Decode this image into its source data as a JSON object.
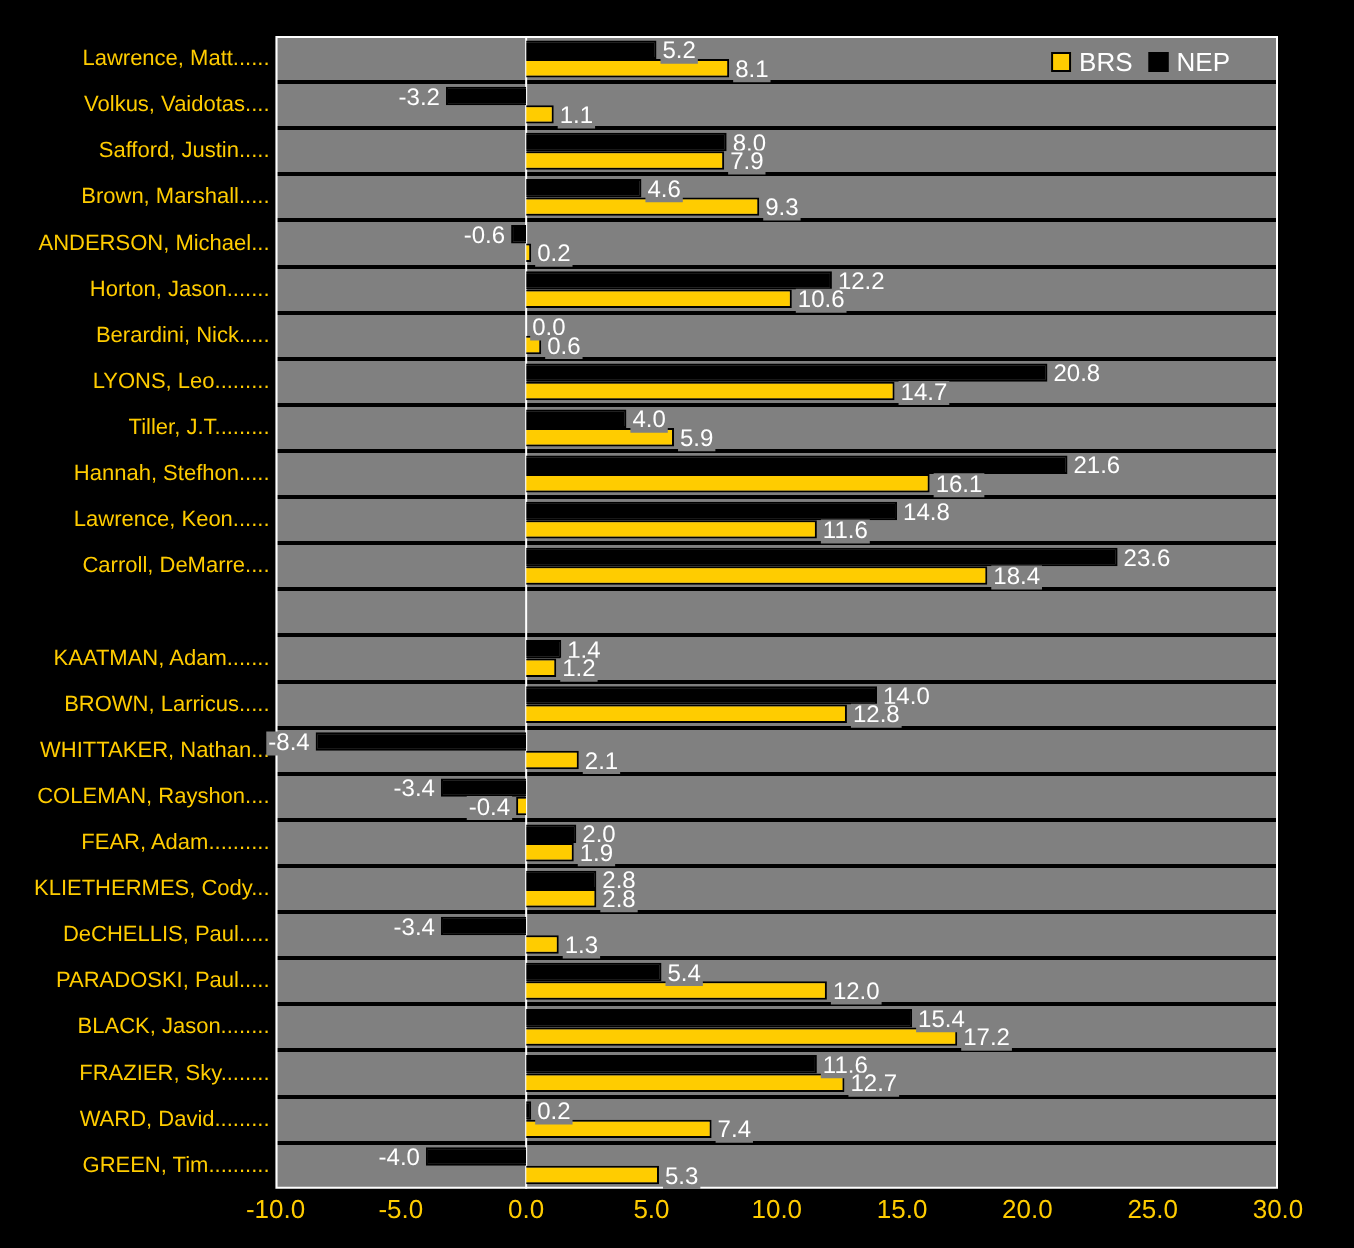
{
  "chart_data": {
    "type": "bar",
    "orientation": "horizontal",
    "categories": [
      "Lawrence, Matt......",
      "Volkus, Vaidotas....",
      "Safford, Justin.....",
      "Brown, Marshall.....",
      "ANDERSON, Michael...",
      "Horton, Jason.......",
      "Berardini, Nick.....",
      "LYONS, Leo.........",
      "Tiller, J.T.........",
      "Hannah, Stefhon.....",
      "Lawrence, Keon......",
      "Carroll, DeMarre....",
      null,
      "KAATMAN, Adam.......",
      "BROWN, Larricus.....",
      "WHITTAKER, Nathan...",
      "COLEMAN, Rayshon....",
      "FEAR, Adam..........",
      "KLIETHERMES, Cody...",
      "DeCHELLIS, Paul.....",
      "PARADOSKI, Paul.....",
      "BLACK, Jason........",
      "FRAZIER, Sky........",
      "WARD, David.........",
      "GREEN, Tim.........."
    ],
    "series": [
      {
        "name": "NEP",
        "color": "#000000",
        "values": [
          5.2,
          -3.2,
          8.0,
          4.6,
          -0.6,
          12.2,
          0.0,
          20.8,
          4.0,
          21.6,
          14.8,
          23.6,
          null,
          1.4,
          14.0,
          -8.4,
          -3.4,
          2.0,
          2.8,
          -3.4,
          5.4,
          15.4,
          11.6,
          0.2,
          -4.0
        ],
        "value_labels": [
          "5.2",
          "-3.2",
          "8.0",
          "4.6",
          "-0.6",
          "12.2",
          "0.0",
          "20.8",
          "4.0",
          "21.6",
          "14.8",
          "23.6",
          null,
          "1.4",
          "14.0",
          "-8.4",
          "-3.4",
          "2.0",
          "2.8",
          "-3.4",
          "5.4",
          "15.4",
          "11.6",
          "0.2",
          "-4.0"
        ]
      },
      {
        "name": "BRS",
        "color": "#ffcc00",
        "values": [
          8.1,
          1.1,
          7.9,
          9.3,
          0.2,
          10.6,
          0.6,
          14.7,
          5.9,
          16.1,
          11.6,
          18.4,
          null,
          1.2,
          12.8,
          2.1,
          -0.4,
          1.9,
          2.8,
          1.3,
          12.0,
          17.2,
          12.7,
          7.4,
          5.3
        ],
        "value_labels": [
          "8.1",
          "1.1",
          "7.9",
          "9.3",
          "0.2",
          "10.6",
          "0.6",
          "14.7",
          "5.9",
          "16.1",
          "11.6",
          "18.4",
          null,
          "1.2",
          "12.8",
          "2.1",
          "-0.4",
          "1.9",
          "2.8",
          "1.3",
          "12.0",
          "17.2",
          "12.7",
          "7.4",
          "5.3"
        ]
      }
    ],
    "xlim": [
      -10,
      30
    ],
    "xticks": [
      {
        "value": -10,
        "label": "-10.0"
      },
      {
        "value": -5,
        "label": "-5.0"
      },
      {
        "value": 0,
        "label": "0.0"
      },
      {
        "value": 5,
        "label": "5.0"
      },
      {
        "value": 10,
        "label": "10.0"
      },
      {
        "value": 15,
        "label": "15.0"
      },
      {
        "value": 20,
        "label": "20.0"
      },
      {
        "value": 25,
        "label": "25.0"
      },
      {
        "value": 30,
        "label": "30.0"
      }
    ],
    "grid": "y",
    "legend": "top right",
    "ref_lines": [
      {
        "axis": "x",
        "value": 0,
        "color": "#ffffff"
      }
    ]
  }
}
